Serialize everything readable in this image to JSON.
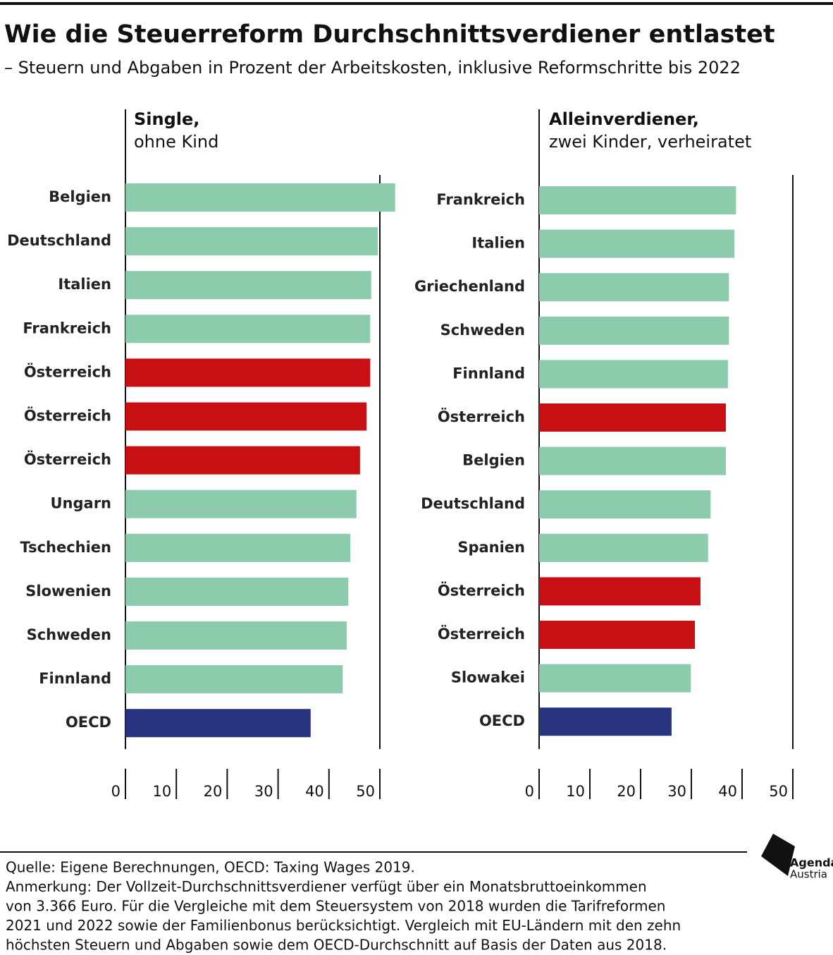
{
  "title": "Wie die Steuerreform Durchschnittsverdiener entlastet",
  "subtitle": "– Steuern und Abgaben in Prozent der Arbeitskosten, inklusive Reformschritte bis 2022",
  "chart_data": [
    {
      "type": "bar",
      "orientation": "horizontal",
      "title": "Single,",
      "subtitle": "ohne Kind",
      "categories": [
        "Belgien",
        "Deutschland",
        "Italien",
        "Frankreich",
        "Österreich",
        "Österreich",
        "Österreich",
        "Ungarn",
        "Tschechien",
        "Slowenien",
        "Schweden",
        "Finnland",
        "OECD"
      ],
      "values": [
        53.0,
        49.6,
        48.3,
        48.1,
        48.1,
        47.4,
        46.1,
        45.4,
        44.2,
        43.8,
        43.5,
        42.7,
        36.4
      ],
      "colors": [
        "#8dcbad",
        "#8dcbad",
        "#8dcbad",
        "#8dcbad",
        "#c80f14",
        "#c80f14",
        "#c80f14",
        "#8dcbad",
        "#8dcbad",
        "#8dcbad",
        "#8dcbad",
        "#8dcbad",
        "#283480"
      ],
      "xlim": [
        0,
        50
      ],
      "xticks": [
        0,
        10,
        20,
        30,
        40,
        50
      ]
    },
    {
      "type": "bar",
      "orientation": "horizontal",
      "title": "Alleinverdiener,",
      "subtitle": "zwei Kinder, verheiratet",
      "categories": [
        "Frankreich",
        "Italien",
        "Griechenland",
        "Schweden",
        "Finnland",
        "Österreich",
        "Belgien",
        "Deutschland",
        "Spanien",
        "Österreich",
        "Österreich",
        "Slowakei",
        "OECD"
      ],
      "values": [
        38.8,
        38.5,
        37.4,
        37.4,
        37.2,
        36.8,
        36.8,
        33.8,
        33.3,
        31.8,
        30.7,
        29.9,
        26.1
      ],
      "colors": [
        "#8dcbad",
        "#8dcbad",
        "#8dcbad",
        "#8dcbad",
        "#8dcbad",
        "#c80f14",
        "#8dcbad",
        "#8dcbad",
        "#8dcbad",
        "#c80f14",
        "#c80f14",
        "#8dcbad",
        "#283480"
      ],
      "xlim": [
        0,
        50
      ],
      "xticks": [
        0,
        10,
        20,
        30,
        40,
        50
      ]
    }
  ],
  "footer": {
    "lines": [
      "Quelle: Eigene Berechnungen, OECD: Taxing Wages 2019.",
      "Anmerkung: Der Vollzeit-Durchschnittsverdiener verfügt über ein Monatsbruttoeinkommen",
      "von 3.366 Euro. Für die Vergleiche mit dem Steuersystem von 2018 wurden die Tarifreformen",
      "2021 und 2022 sowie der Familienbonus berücksichtigt. Vergleich mit EU-Ländern mit den zehn",
      "höchsten Steuern und Abgaben sowie dem OECD-Durchschnitt auf Basis der Daten aus 2018."
    ]
  },
  "logo": {
    "line1": "Agenda",
    "line2": "Austria"
  }
}
